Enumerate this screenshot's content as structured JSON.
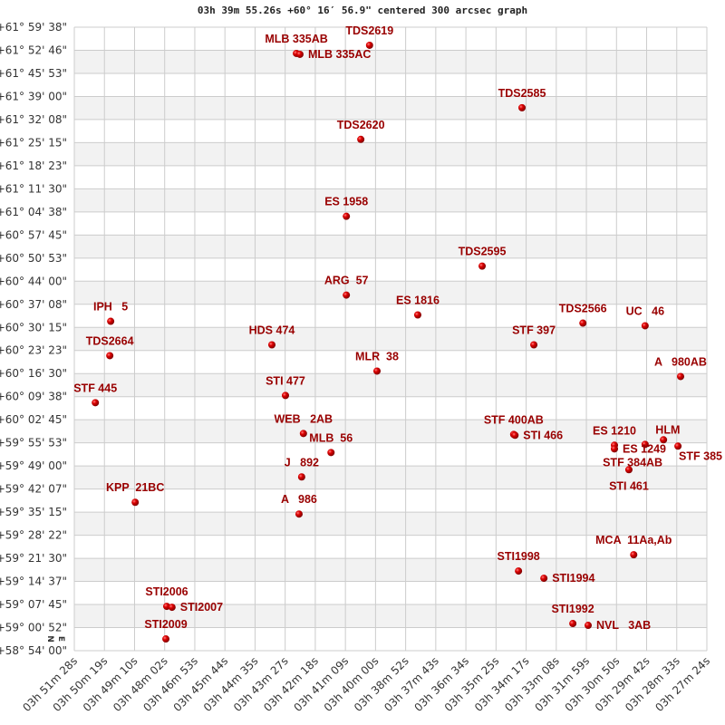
{
  "chart_data": {
    "type": "scatter",
    "title": "03h 39m 55.26s +60° 16′ 56.9\" centered 300 arcsec graph",
    "xlabel": "",
    "ylabel": "",
    "xlim": [
      "03h 51m 28s",
      "03h 27m 24s"
    ],
    "ylim": [
      "+58° 54' 00\"",
      "+61° 59' 38\""
    ],
    "grid": true,
    "band_colors": [
      "#ffffff",
      "#f2f2f2"
    ],
    "grid_color": "#cccccc",
    "marker_color": "#dd0000",
    "label_color": "#990000",
    "direction_labels": {
      "north": "N",
      "east": "E"
    },
    "x_ticks": [
      "03h 51m 28s",
      "03h 50m 19s",
      "03h 49m 10s",
      "03h 48m 02s",
      "03h 46m 53s",
      "03h 45m 44s",
      "03h 44m 35s",
      "03h 43m 27s",
      "03h 42m 18s",
      "03h 41m 09s",
      "03h 40m 00s",
      "03h 38m 52s",
      "03h 37m 43s",
      "03h 36m 34s",
      "03h 35m 25s",
      "03h 34m 17s",
      "03h 33m 08s",
      "03h 31m 59s",
      "03h 30m 50s",
      "03h 29m 42s",
      "03h 28m 33s",
      "03h 27m 24s"
    ],
    "y_ticks": [
      "+61° 59' 38\"",
      "+61° 52' 46\"",
      "+61° 45' 53\"",
      "+61° 39' 00\"",
      "+61° 32' 08\"",
      "+61° 25' 15\"",
      "+61° 18' 23\"",
      "+61° 11' 30\"",
      "+61° 04' 38\"",
      "+60° 57' 45\"",
      "+60° 50' 53\"",
      "+60° 44' 00\"",
      "+60° 37' 08\"",
      "+60° 30' 15\"",
      "+60° 23' 23\"",
      "+60° 16' 30\"",
      "+60° 09' 38\"",
      "+60° 02' 45\"",
      "+59° 55' 53\"",
      "+59° 49' 00\"",
      "+59° 42' 07\"",
      "+59° 35' 15\"",
      "+59° 28' 22\"",
      "+59° 21' 30\"",
      "+59° 14' 37\"",
      "+59° 07' 45\"",
      "+59° 00' 52\"",
      "+58° 54' 00\""
    ],
    "points": [
      {
        "name": "MLB 335AB",
        "ra": "03h 43m 01s",
        "dec": "+61° 51' 49\""
      },
      {
        "name": "MLB 335AC",
        "ra": "03h 42m 53s",
        "dec": "+61° 51' 33\""
      },
      {
        "name": "TDS2619",
        "ra": "03h 40m 14s",
        "dec": "+61° 54' 15\""
      },
      {
        "name": "TDS2585",
        "ra": "03h 34m 26s",
        "dec": "+61° 35' 39\""
      },
      {
        "name": "TDS2620",
        "ra": "03h 40m 34s",
        "dec": "+61° 26' 14\""
      },
      {
        "name": "ES 1958",
        "ra": "03h 41m 07s",
        "dec": "+61° 03' 20\""
      },
      {
        "name": "TDS2595",
        "ra": "03h 35m 57s",
        "dec": "+60° 48' 30\""
      },
      {
        "name": "ARG  57",
        "ra": "03h 41m 07s",
        "dec": "+60° 39' 53\""
      },
      {
        "name": "ES 1816",
        "ra": "03h 38m 24s",
        "dec": "+60° 33' 58\""
      },
      {
        "name": "IPH   5",
        "ra": "03h 50m 05s",
        "dec": "+60° 32' 04\""
      },
      {
        "name": "TDS2566",
        "ra": "03h 32m 07s",
        "dec": "+60° 31' 32\""
      },
      {
        "name": "UC   46",
        "ra": "03h 29m 45s",
        "dec": "+60° 30' 44\""
      },
      {
        "name": "HDS 474",
        "ra": "03h 43m 57s",
        "dec": "+60° 25' 04\""
      },
      {
        "name": "STF 397",
        "ra": "03h 33m 59s",
        "dec": "+60° 25' 04\""
      },
      {
        "name": "TDS2664",
        "ra": "03h 50m 07s",
        "dec": "+60° 21' 50\""
      },
      {
        "name": "MLR  38",
        "ra": "03h 39m 57s",
        "dec": "+60° 17' 15\""
      },
      {
        "name": "A   980AB",
        "ra": "03h 28m 24s",
        "dec": "+60° 15' 38\""
      },
      {
        "name": "STI 477",
        "ra": "03h 43m 26s",
        "dec": "+60° 09' 59\""
      },
      {
        "name": "STF 445",
        "ra": "03h 50m 40s",
        "dec": "+60° 07' 50\""
      },
      {
        "name": "WEB   2AB",
        "ra": "03h 42m 45s",
        "dec": "+59° 58' 40\""
      },
      {
        "name": "STF 400AB",
        "ra": "03h 34m 45s",
        "dec": "+59° 58' 24\""
      },
      {
        "name": "STI 466",
        "ra": "03h 34m 42s",
        "dec": "+59° 58' 08\""
      },
      {
        "name": "MLB  56",
        "ra": "03h 41m 42s",
        "dec": "+59° 53' 00\""
      },
      {
        "name": "ES 1210",
        "ra": "03h 30m 55s",
        "dec": "+59° 55' 10\""
      },
      {
        "name": "ES 1249",
        "ra": "03h 30m 55s",
        "dec": "+59° 54' 05\""
      },
      {
        "name": "HLM",
        "ra": "03h 29m 45s",
        "dec": "+59° 55' 26\""
      },
      {
        "name": "STF 385",
        "ra": "03h 29m 03s",
        "dec": "+59° 56' 47\""
      },
      {
        "name": "STF 384AB",
        "ra": "03h 28m 30s",
        "dec": "+59° 54' 54\""
      },
      {
        "name": "STI 461",
        "ra": "03h 30m 22s",
        "dec": "+59° 47' 53\""
      },
      {
        "name": "J   892",
        "ra": "03h 42m 49s",
        "dec": "+59° 45' 44\""
      },
      {
        "name": "KPP  21BC",
        "ra": "03h 49m 09s",
        "dec": "+59° 38' 11\""
      },
      {
        "name": "A   986",
        "ra": "03h 42m 55s",
        "dec": "+59° 34' 41\""
      },
      {
        "name": "MCA  11Aa,Ab",
        "ra": "03h 30m 11s",
        "dec": "+59° 22' 34\""
      },
      {
        "name": "STI1998",
        "ra": "03h 34m 34s",
        "dec": "+59° 17' 43\""
      },
      {
        "name": "STI1994",
        "ra": "03h 33m 36s",
        "dec": "+59° 15' 34\""
      },
      {
        "name": "STI2006",
        "ra": "03h 47m 57s",
        "dec": "+59° 07' 12\""
      },
      {
        "name": "STI2007",
        "ra": "03h 47m 45s",
        "dec": "+59° 06' 56\""
      },
      {
        "name": "STI1992",
        "ra": "03h 32m 30s",
        "dec": "+59° 02' 05\""
      },
      {
        "name": "NVL   3AB",
        "ra": "03h 31m 55s",
        "dec": "+59° 01' 33\""
      },
      {
        "name": "STI2009",
        "ra": "03h 47m 59s",
        "dec": "+58° 57' 30\""
      }
    ]
  }
}
